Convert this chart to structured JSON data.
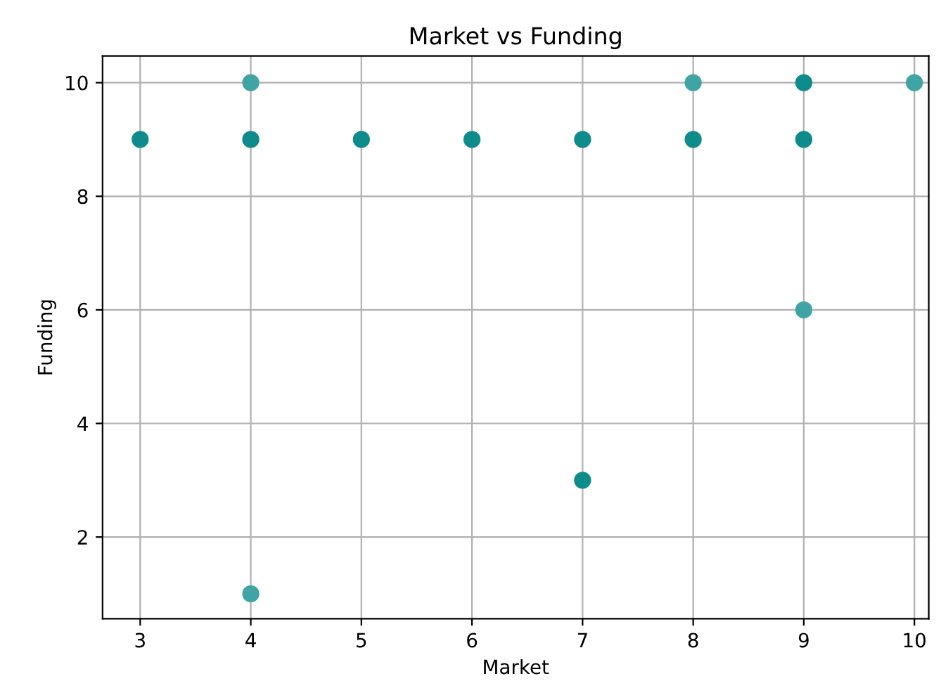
{
  "chart_data": {
    "type": "scatter",
    "title": "Market vs Funding",
    "xlabel": "Market",
    "ylabel": "Funding",
    "series": [
      {
        "x": [
          3,
          4,
          4,
          4,
          5,
          6,
          7,
          7,
          8,
          8,
          9,
          9,
          9,
          10
        ],
        "values": [
          9,
          9,
          10,
          1,
          9,
          9,
          9,
          3,
          9,
          10,
          9,
          10,
          6,
          10
        ],
        "colors": [
          "#0e8c8c",
          "#0e8c8c",
          "#40a4a4",
          "#40a4a4",
          "#0e8c8c",
          "#0e8c8c",
          "#0e8c8c",
          "#0e8c8c",
          "#0e8c8c",
          "#40a4a4",
          "#0e8c8c",
          "#0e8c8c",
          "#40a4a4",
          "#40a4a4"
        ]
      }
    ],
    "xlim": [
      2.66,
      10.13
    ],
    "ylim": [
      0.56,
      10.47
    ],
    "xticks": [
      3,
      4,
      5,
      6,
      7,
      8,
      9,
      10
    ],
    "yticks": [
      2,
      4,
      6,
      8,
      10
    ],
    "grid": true,
    "marker": "circle"
  }
}
